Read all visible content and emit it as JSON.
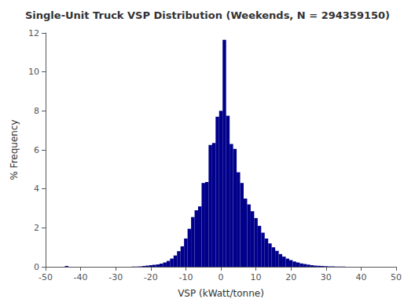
{
  "chart_data": {
    "type": "bar",
    "title": "Single-Unit Truck VSP Distribution (Weekends, N = 294359150)",
    "xlabel": "VSP (kWatt/tonne)",
    "ylabel": "% Frequency",
    "x": [
      -44,
      -43,
      -42,
      -41,
      -40,
      -39,
      -38,
      -37,
      -36,
      -35,
      -34,
      -33,
      -32,
      -31,
      -30,
      -29,
      -28,
      -27,
      -26,
      -25,
      -24,
      -23,
      -22,
      -21,
      -20,
      -19,
      -18,
      -17,
      -16,
      -15,
      -14,
      -13,
      -12,
      -11,
      -10,
      -9,
      -8,
      -7,
      -6,
      -5,
      -4,
      -3,
      -2,
      -1,
      0,
      1,
      2,
      3,
      4,
      5,
      6,
      7,
      8,
      9,
      10,
      11,
      12,
      13,
      14,
      15,
      16,
      17,
      18,
      19,
      20,
      21,
      22,
      23,
      24,
      25,
      26,
      27,
      28,
      29,
      30,
      31,
      32,
      33,
      34,
      35,
      36,
      37,
      38,
      39,
      40,
      41,
      42,
      43,
      44,
      45,
      46
    ],
    "values": [
      0.04,
      0.0,
      0.0,
      0.0,
      0.0,
      0.0,
      0.0,
      0.0,
      0.0,
      0.0,
      0.0,
      0.0,
      0.0,
      0.0,
      0.0,
      0.0,
      0.0,
      0.0,
      0.0,
      0.01,
      0.01,
      0.02,
      0.04,
      0.06,
      0.08,
      0.1,
      0.12,
      0.16,
      0.22,
      0.3,
      0.42,
      0.58,
      0.8,
      1.05,
      1.45,
      1.95,
      2.55,
      2.9,
      3.1,
      4.3,
      4.35,
      6.25,
      6.35,
      7.7,
      8.0,
      11.65,
      7.75,
      6.3,
      6.05,
      4.85,
      4.3,
      3.5,
      3.2,
      2.85,
      2.5,
      2.1,
      1.75,
      1.45,
      1.2,
      1.0,
      0.82,
      0.65,
      0.52,
      0.42,
      0.34,
      0.27,
      0.22,
      0.17,
      0.14,
      0.11,
      0.08,
      0.06,
      0.05,
      0.04,
      0.03,
      0.02,
      0.02,
      0.01,
      0.01,
      0.01,
      0.0,
      0.0,
      0.0,
      0.0,
      0.0,
      0.0,
      0.0,
      0.0,
      0.0,
      0.0,
      0.0
    ],
    "color": "#00008B",
    "xlim": [
      -50,
      50
    ],
    "ylim": [
      0,
      12
    ],
    "xticks": [
      -50,
      -40,
      -30,
      -20,
      -10,
      0,
      10,
      20,
      30,
      40,
      50
    ],
    "yticks": [
      0,
      2,
      4,
      6,
      8,
      10,
      12
    ],
    "grid": false
  }
}
